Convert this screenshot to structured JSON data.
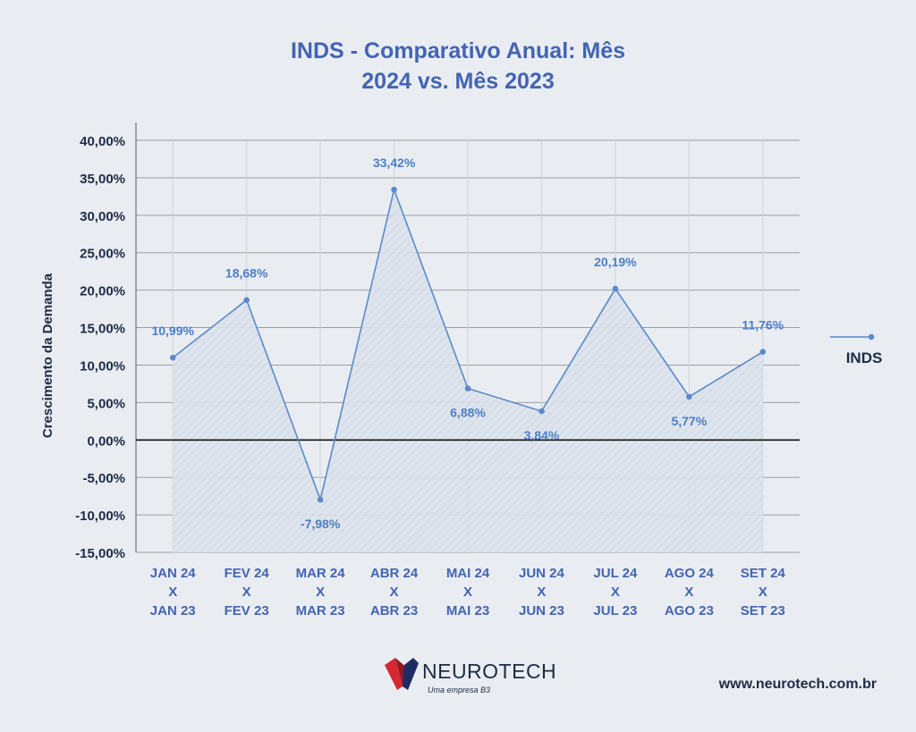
{
  "chart_data": {
    "type": "line",
    "title_line1": "INDS - Comparativo Anual: Mês",
    "title_line2": "2024 vs. Mês 2023",
    "ylabel": "Crescimento da Demanda",
    "ylim": [
      -15,
      40
    ],
    "yticks": [
      40,
      35,
      30,
      25,
      20,
      15,
      10,
      5,
      0,
      -5,
      -10,
      -15
    ],
    "ytick_labels": [
      "40,00%",
      "35,00%",
      "30,00%",
      "25,00%",
      "20,00%",
      "15,00%",
      "10,00%",
      "5,00%",
      "0,00%",
      "-5,00%",
      "-10,00%",
      "-15,00%"
    ],
    "categories": [
      [
        "JAN 24",
        "X",
        "JAN 23"
      ],
      [
        "FEV 24",
        "X",
        "FEV 23"
      ],
      [
        "MAR 24",
        "X",
        "MAR 23"
      ],
      [
        "ABR 24",
        "X",
        "ABR 23"
      ],
      [
        "MAI 24",
        "X",
        "MAI 23"
      ],
      [
        "JUN 24",
        "X",
        "JUN 23"
      ],
      [
        "JUL 24",
        "X",
        "JUL 23"
      ],
      [
        "AGO 24",
        "X",
        "AGO 23"
      ],
      [
        "SET 24",
        "X",
        "SET 23"
      ]
    ],
    "series": [
      {
        "name": "INDS",
        "values": [
          10.99,
          18.68,
          -7.98,
          33.42,
          6.88,
          3.84,
          20.19,
          5.77,
          11.76
        ],
        "labels": [
          "10,99%",
          "18,68%",
          "-7,98%",
          "33,42%",
          "6,88%",
          "3,84%",
          "20,19%",
          "5,77%",
          "11,76%"
        ]
      }
    ],
    "grid": true,
    "legend": "right",
    "colors": {
      "line": "#5b8ac9",
      "label": "#4d7fc4",
      "axis_text": "#1d2b45",
      "category_text": "#4264b3",
      "title": "#4264b3",
      "zero_line": "#111111",
      "grid": "#9aa0a8"
    }
  },
  "footer": {
    "logo_name": "NEUROTECH",
    "logo_tagline": "Uma empresa B3",
    "website": "www.neurotech.com.br"
  }
}
